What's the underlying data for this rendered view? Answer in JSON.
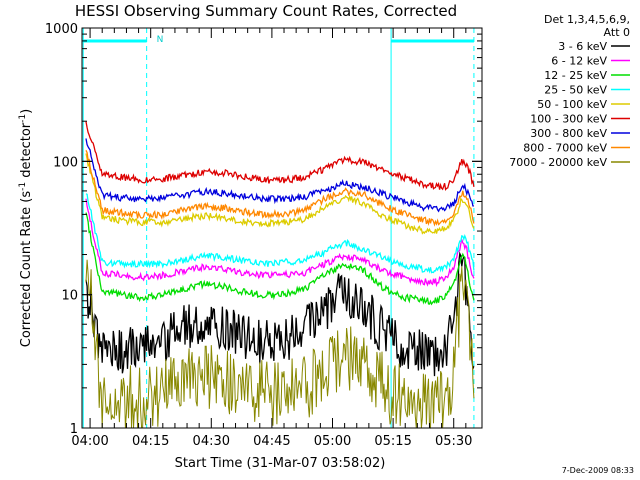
{
  "chart_data": {
    "type": "line",
    "title": "HESSI Observing Summary Count Rates, Corrected",
    "xlabel": "Start Time (31-Mar-07 03:58:02)",
    "ylabel": "Corrected Count Rate (s",
    "ylabel_sup1": "-1",
    "ylabel_mid": " detector",
    "ylabel_sup2": "-1",
    "ylabel_end": ")",
    "x_units": "minutes since 03:58:02",
    "xlim": [
      0,
      99
    ],
    "ylim": [
      1,
      1000
    ],
    "yscale": "log",
    "x_ticks": [
      {
        "t": 2,
        "label": "04:00"
      },
      {
        "t": 17,
        "label": "04:15"
      },
      {
        "t": 32,
        "label": "04:30"
      },
      {
        "t": 47,
        "label": "04:45"
      },
      {
        "t": 62,
        "label": "05:00"
      },
      {
        "t": 77,
        "label": "05:15"
      },
      {
        "t": 92,
        "label": "05:30"
      }
    ],
    "y_ticks": [
      {
        "v": 1,
        "label": "1"
      },
      {
        "v": 10,
        "label": "10"
      },
      {
        "v": 100,
        "label": "100"
      },
      {
        "v": 1000,
        "label": "1000"
      }
    ],
    "legend": {
      "header1": "Det 1,3,4,5,6,9,",
      "header2": "Att 0",
      "position": "right"
    },
    "annotations": {
      "night_marker": "N",
      "timestamp": "7-Dec-2009 08:33"
    },
    "vertical_lines": [
      {
        "t": 0.3,
        "style": "solid",
        "color": "#00ffff"
      },
      {
        "t": 16,
        "style": "dashed",
        "color": "#00ffff"
      },
      {
        "t": 76.5,
        "style": "solid",
        "color": "#00ffff"
      },
      {
        "t": 97,
        "style": "dashed",
        "color": "#00ffff"
      }
    ],
    "night_bars": [
      {
        "t0": 0.3,
        "t1": 16
      },
      {
        "t0": 76.5,
        "t1": 97
      }
    ],
    "x": [
      1,
      5,
      10,
      15,
      20,
      25,
      30,
      35,
      40,
      45,
      50,
      55,
      60,
      65,
      70,
      75,
      80,
      85,
      88,
      90,
      92,
      94,
      95,
      96,
      97
    ],
    "series": [
      {
        "name": "3 - 6 keV",
        "color": "#000000",
        "values": [
          11,
          3.6,
          3.8,
          4.0,
          4.5,
          5.5,
          6,
          5.5,
          5,
          4.5,
          4.5,
          5.5,
          8,
          10.5,
          8,
          5,
          4,
          3.6,
          3.5,
          4,
          8,
          16,
          12,
          6,
          3
        ]
      },
      {
        "name": "6 - 12 keV",
        "color": "#ff00ff",
        "values": [
          50,
          14.5,
          14,
          13.5,
          14,
          15,
          16,
          15.5,
          14.5,
          14,
          14,
          14.5,
          17,
          19.5,
          18,
          15,
          13.5,
          12.5,
          12.5,
          13.5,
          16,
          25,
          23,
          17,
          13
        ]
      },
      {
        "name": "12 - 25 keV",
        "color": "#00dd00",
        "values": [
          40,
          10.5,
          10,
          9.5,
          10,
          11,
          12,
          11.5,
          10.5,
          10,
          10,
          11,
          14,
          17,
          15,
          11,
          9.5,
          9,
          9,
          10,
          12,
          20,
          18,
          12,
          9
        ]
      },
      {
        "name": "25 - 50 keV",
        "color": "#00ffff",
        "values": [
          60,
          17.5,
          17,
          17,
          17,
          18,
          19.5,
          19,
          18,
          17,
          17.5,
          18,
          21,
          24.5,
          22,
          18.5,
          16.5,
          15.5,
          15.5,
          16,
          18,
          28,
          26,
          21,
          16
        ]
      },
      {
        "name": "50 - 100 keV",
        "color": "#ddcc00",
        "values": [
          110,
          38,
          36,
          35,
          35,
          37,
          39,
          38,
          35,
          34,
          35,
          37,
          45,
          54,
          48,
          38,
          33,
          30,
          30,
          32,
          36,
          52,
          50,
          40,
          30
        ]
      },
      {
        "name": "100 - 300 keV",
        "color": "#dd0000",
        "values": [
          190,
          80,
          76,
          73,
          74,
          78,
          83,
          82,
          77,
          72,
          72,
          76,
          88,
          103,
          98,
          85,
          75,
          67,
          64,
          65,
          70,
          100,
          96,
          82,
          65
        ]
      },
      {
        "name": "300 - 800 keV",
        "color": "#0000dd",
        "values": [
          150,
          56,
          53,
          52,
          53,
          56,
          59,
          58,
          55,
          52,
          52,
          54,
          60,
          68,
          64,
          56,
          50,
          45,
          44,
          45,
          48,
          66,
          62,
          54,
          45
        ]
      },
      {
        "name": "800 - 7000 keV",
        "color": "#ff8800",
        "values": [
          120,
          43,
          41,
          39,
          40,
          43,
          46,
          45,
          42,
          40,
          40,
          43,
          52,
          60,
          56,
          46,
          40,
          36,
          35,
          36,
          40,
          58,
          55,
          46,
          35
        ]
      },
      {
        "name": "7000 - 20000 keV",
        "color": "#888800",
        "values": [
          20,
          1.5,
          1.7,
          1.6,
          1.8,
          2.2,
          2.5,
          2.2,
          2.0,
          1.8,
          1.8,
          2.0,
          2.6,
          3.5,
          3.0,
          2.0,
          1.6,
          1.5,
          1.5,
          1.7,
          2.5,
          12,
          10,
          5,
          1.8
        ]
      }
    ]
  }
}
